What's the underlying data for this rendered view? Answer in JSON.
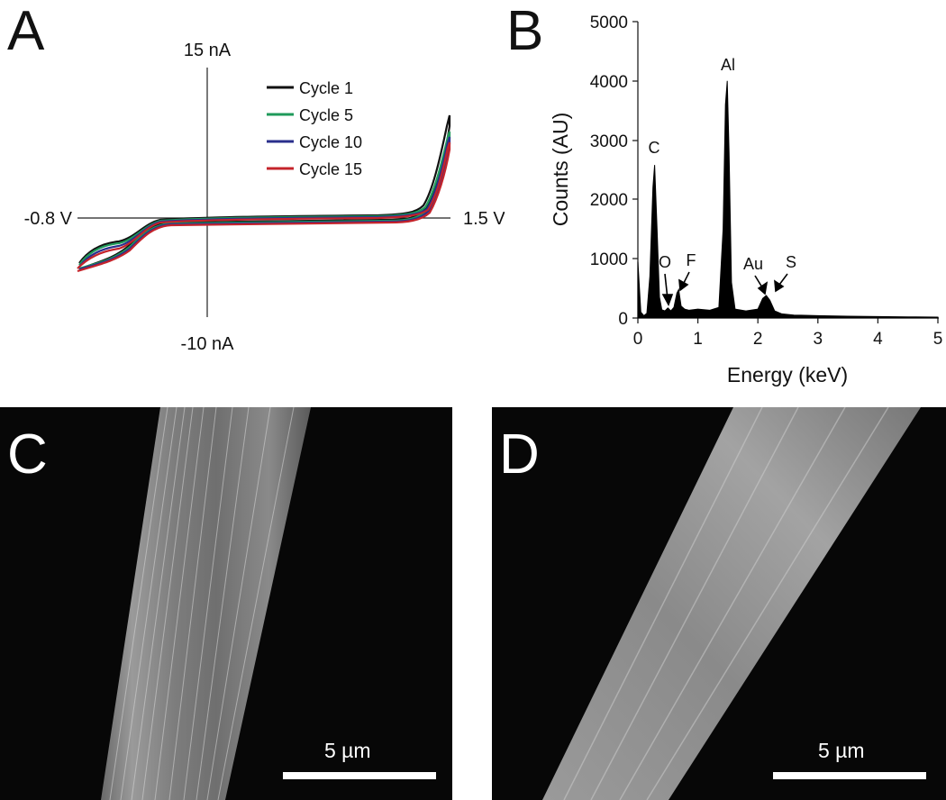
{
  "panels": {
    "a": {
      "letter": "A",
      "y_pos_label": "15 nA",
      "y_neg_label": "-10 nA",
      "x_neg_label": "-0.8 V",
      "x_pos_label": "1.5 V",
      "legend": [
        {
          "label": "Cycle 1",
          "color": "#111111"
        },
        {
          "label": "Cycle 5",
          "color": "#1f9a5a"
        },
        {
          "label": "Cycle 10",
          "color": "#2a2f8c"
        },
        {
          "label": "Cycle 15",
          "color": "#c4242b"
        }
      ]
    },
    "b": {
      "letter": "B",
      "ylabel": "Counts (AU)",
      "xlabel": "Energy (keV)",
      "x_ticks": [
        "0",
        "1",
        "2",
        "3",
        "4",
        "5"
      ],
      "y_ticks": [
        "0",
        "1000",
        "2000",
        "3000",
        "4000",
        "5000"
      ],
      "peak_labels": [
        {
          "label": "C"
        },
        {
          "label": "Al"
        },
        {
          "label": "O"
        },
        {
          "label": "F"
        },
        {
          "label": "Au"
        },
        {
          "label": "S"
        }
      ]
    },
    "c": {
      "letter": "C",
      "scale_label": "5 µm"
    },
    "d": {
      "letter": "D",
      "scale_label": "5 µm"
    }
  },
  "chart_data": [
    {
      "type": "line",
      "xlim": [
        -0.8,
        1.5
      ],
      "ylim": [
        -10,
        15
      ],
      "series": [
        {
          "name": "Cycle 1",
          "color": "#111111"
        },
        {
          "name": "Cycle 5",
          "color": "#1f9a5a"
        },
        {
          "name": "Cycle 10",
          "color": "#2a2f8c"
        },
        {
          "name": "Cycle 15",
          "color": "#c4242b"
        }
      ]
    },
    {
      "type": "area",
      "xlabel": "Energy (keV)",
      "ylabel": "Counts (AU)",
      "xlim": [
        0,
        5
      ],
      "ylim": [
        0,
        5000
      ],
      "x": [
        0,
        0.05,
        0.1,
        0.15,
        0.2,
        0.25,
        0.28,
        0.32,
        0.36,
        0.4,
        0.45,
        0.5,
        0.55,
        0.6,
        0.65,
        0.68,
        0.72,
        0.78,
        0.85,
        1.0,
        1.2,
        1.35,
        1.42,
        1.46,
        1.49,
        1.52,
        1.56,
        1.62,
        1.8,
        2.0,
        2.08,
        2.14,
        2.2,
        2.28,
        2.4,
        2.6,
        3.0,
        3.5,
        4.0,
        4.5,
        5.0
      ],
      "y": [
        950,
        100,
        40,
        80,
        700,
        2200,
        2580,
        1500,
        350,
        140,
        120,
        170,
        120,
        180,
        420,
        480,
        200,
        150,
        130,
        150,
        130,
        180,
        1500,
        3600,
        4000,
        2800,
        600,
        150,
        120,
        150,
        330,
        380,
        300,
        120,
        70,
        50,
        40,
        30,
        25,
        20,
        15
      ]
    }
  ]
}
